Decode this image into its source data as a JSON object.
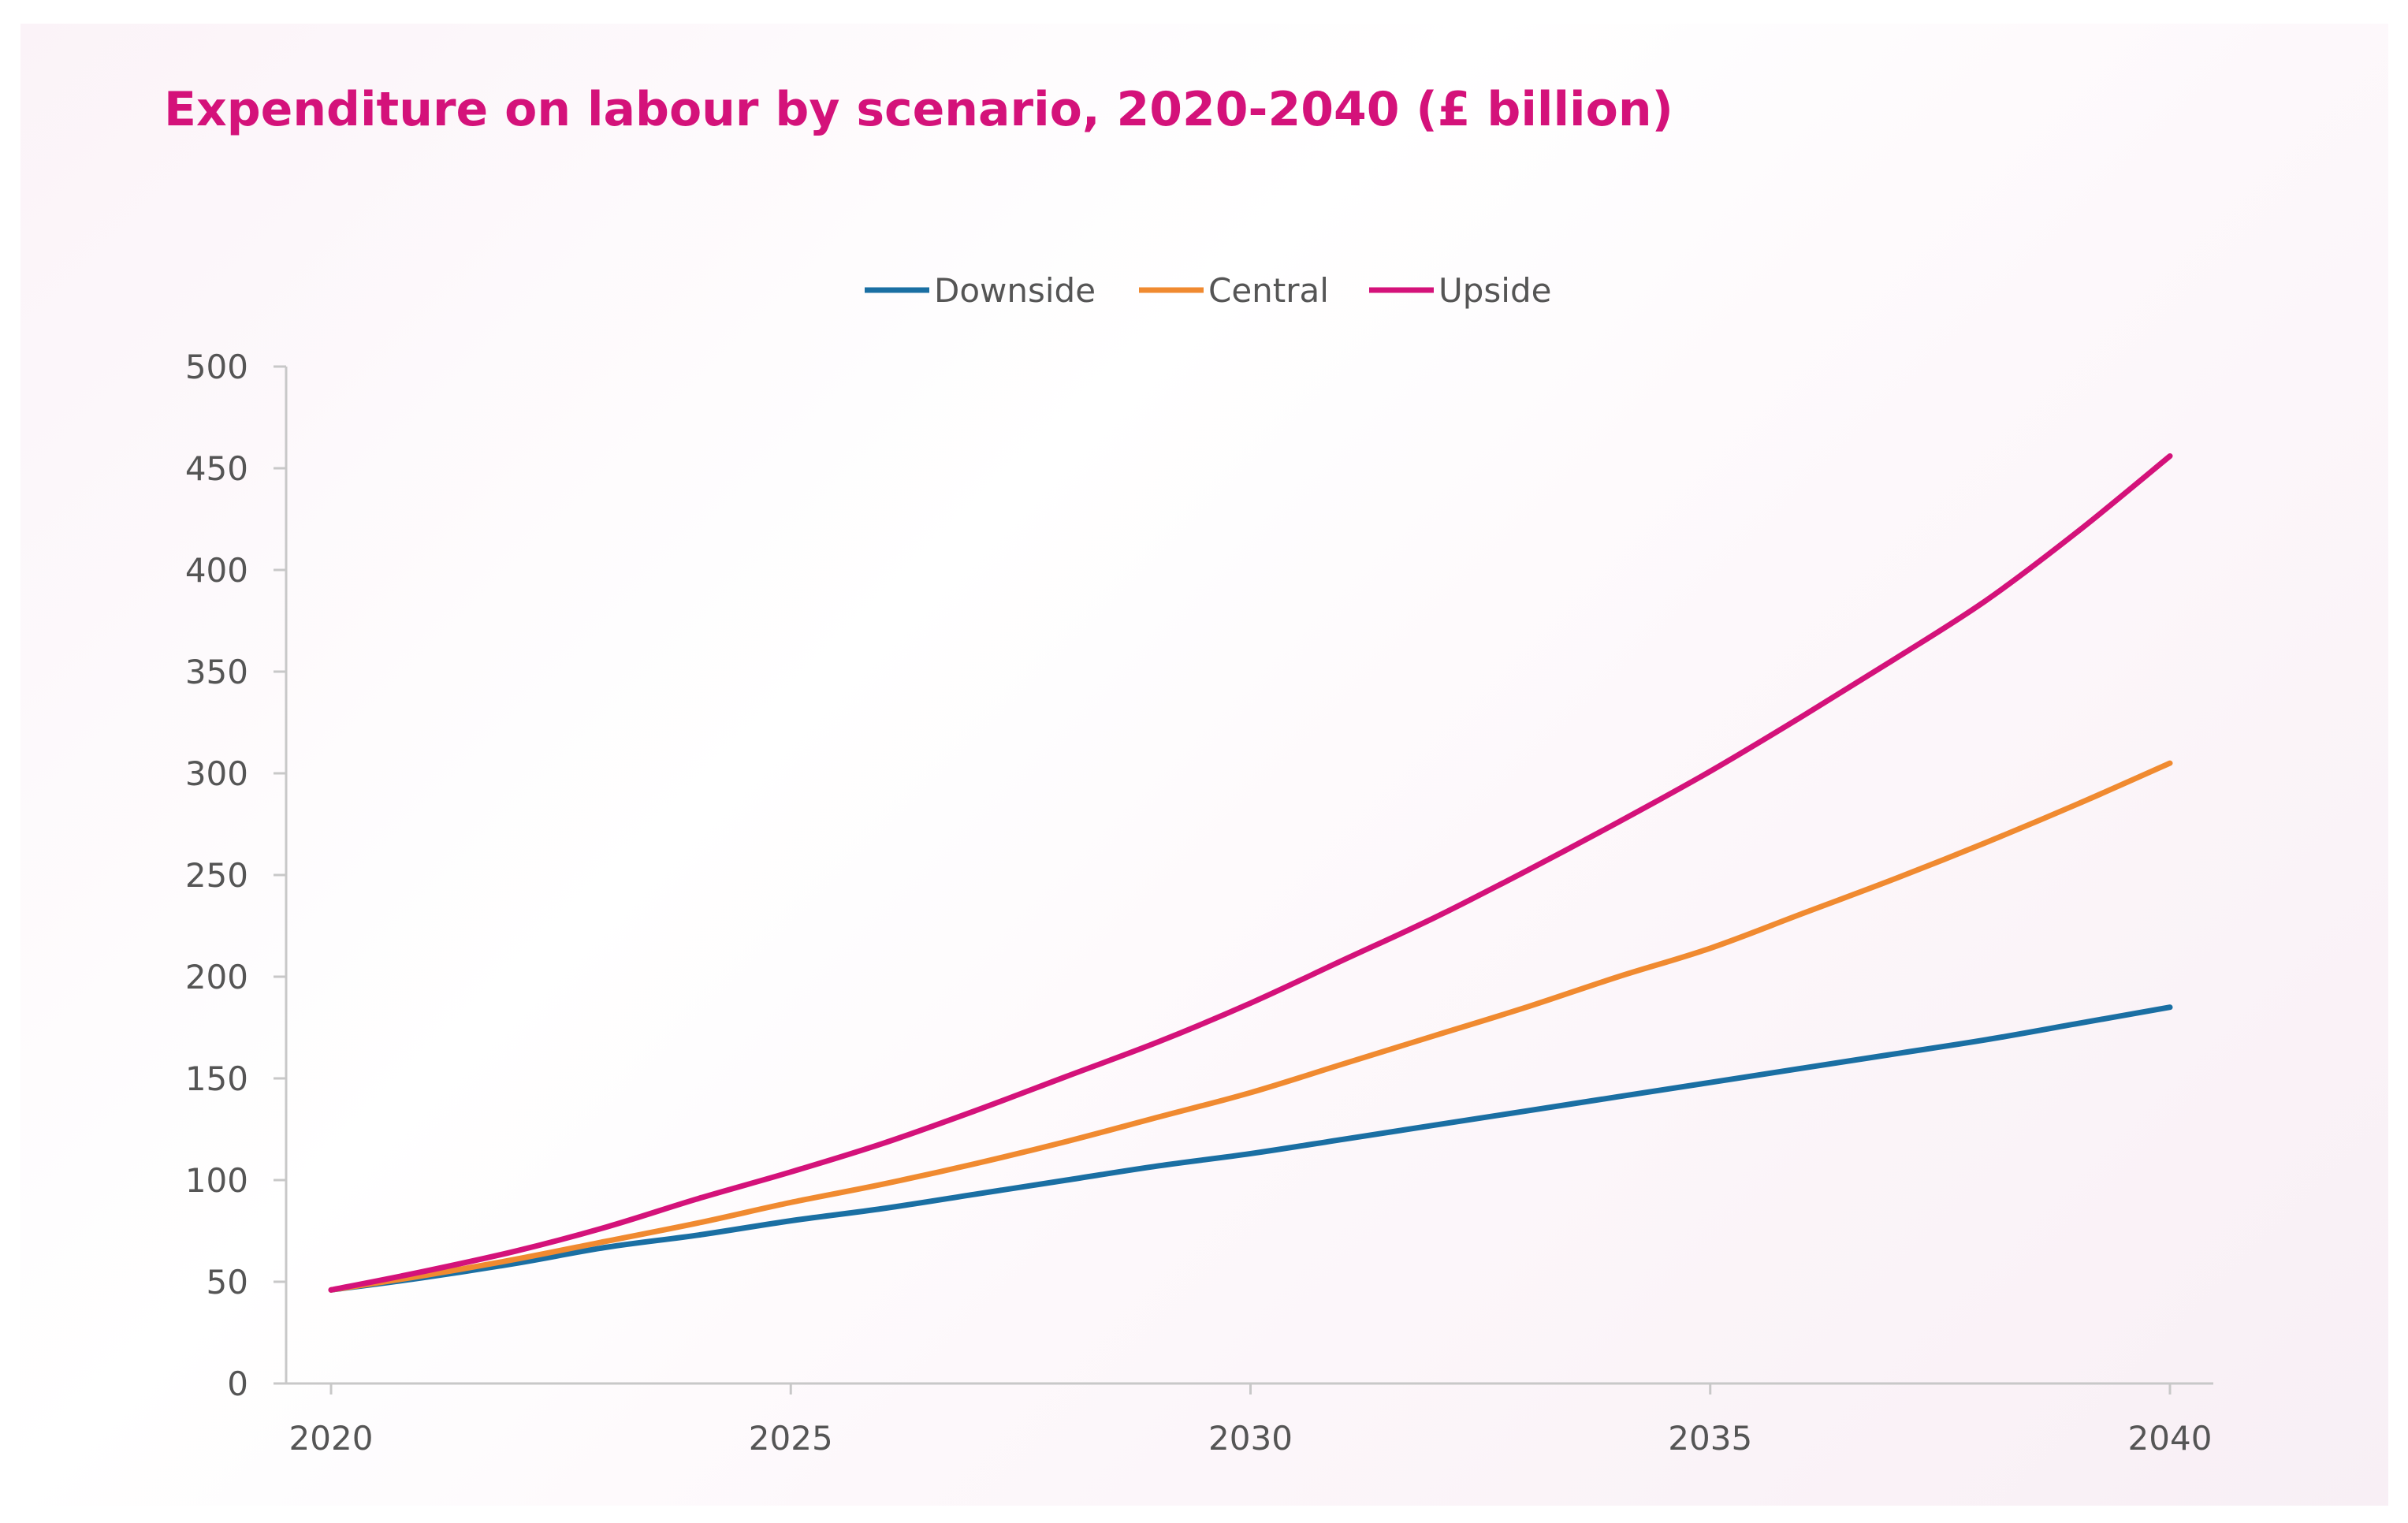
{
  "chart_data": {
    "type": "line",
    "title": "Expenditure on labour by scenario, 2020-2040 (£ billion)",
    "xlabel": "",
    "ylabel": "",
    "x": [
      2020,
      2021,
      2022,
      2023,
      2024,
      2025,
      2026,
      2027,
      2028,
      2029,
      2030,
      2031,
      2032,
      2033,
      2034,
      2035,
      2036,
      2037,
      2038,
      2039,
      2040
    ],
    "xticks": [
      "2020",
      "2025",
      "2030",
      "2035",
      "2040"
    ],
    "yticks": [
      "0",
      "50",
      "100",
      "150",
      "200",
      "250",
      "300",
      "350",
      "400",
      "450",
      "500"
    ],
    "xlim": [
      2020,
      2040
    ],
    "ylim": [
      0,
      500
    ],
    "grid": false,
    "legend_position": "top-center",
    "series": [
      {
        "name": "Downside",
        "color": "#1a6fa3",
        "values": [
          46,
          52,
          59,
          67,
          73,
          80,
          86,
          93,
          100,
          107,
          113,
          120,
          127,
          134,
          141,
          148,
          155,
          162,
          169,
          177,
          185
        ]
      },
      {
        "name": "Central",
        "color": "#f08a30",
        "values": [
          46,
          53,
          61,
          70,
          79,
          89,
          98,
          108,
          119,
          131,
          143,
          157,
          171,
          185,
          200,
          214,
          231,
          248,
          266,
          285,
          305
        ]
      },
      {
        "name": "Upside",
        "color": "#d4127a",
        "values": [
          46,
          55,
          65,
          77,
          91,
          104,
          118,
          134,
          151,
          168,
          187,
          208,
          229,
          252,
          276,
          301,
          328,
          356,
          385,
          419,
          456
        ]
      }
    ]
  }
}
